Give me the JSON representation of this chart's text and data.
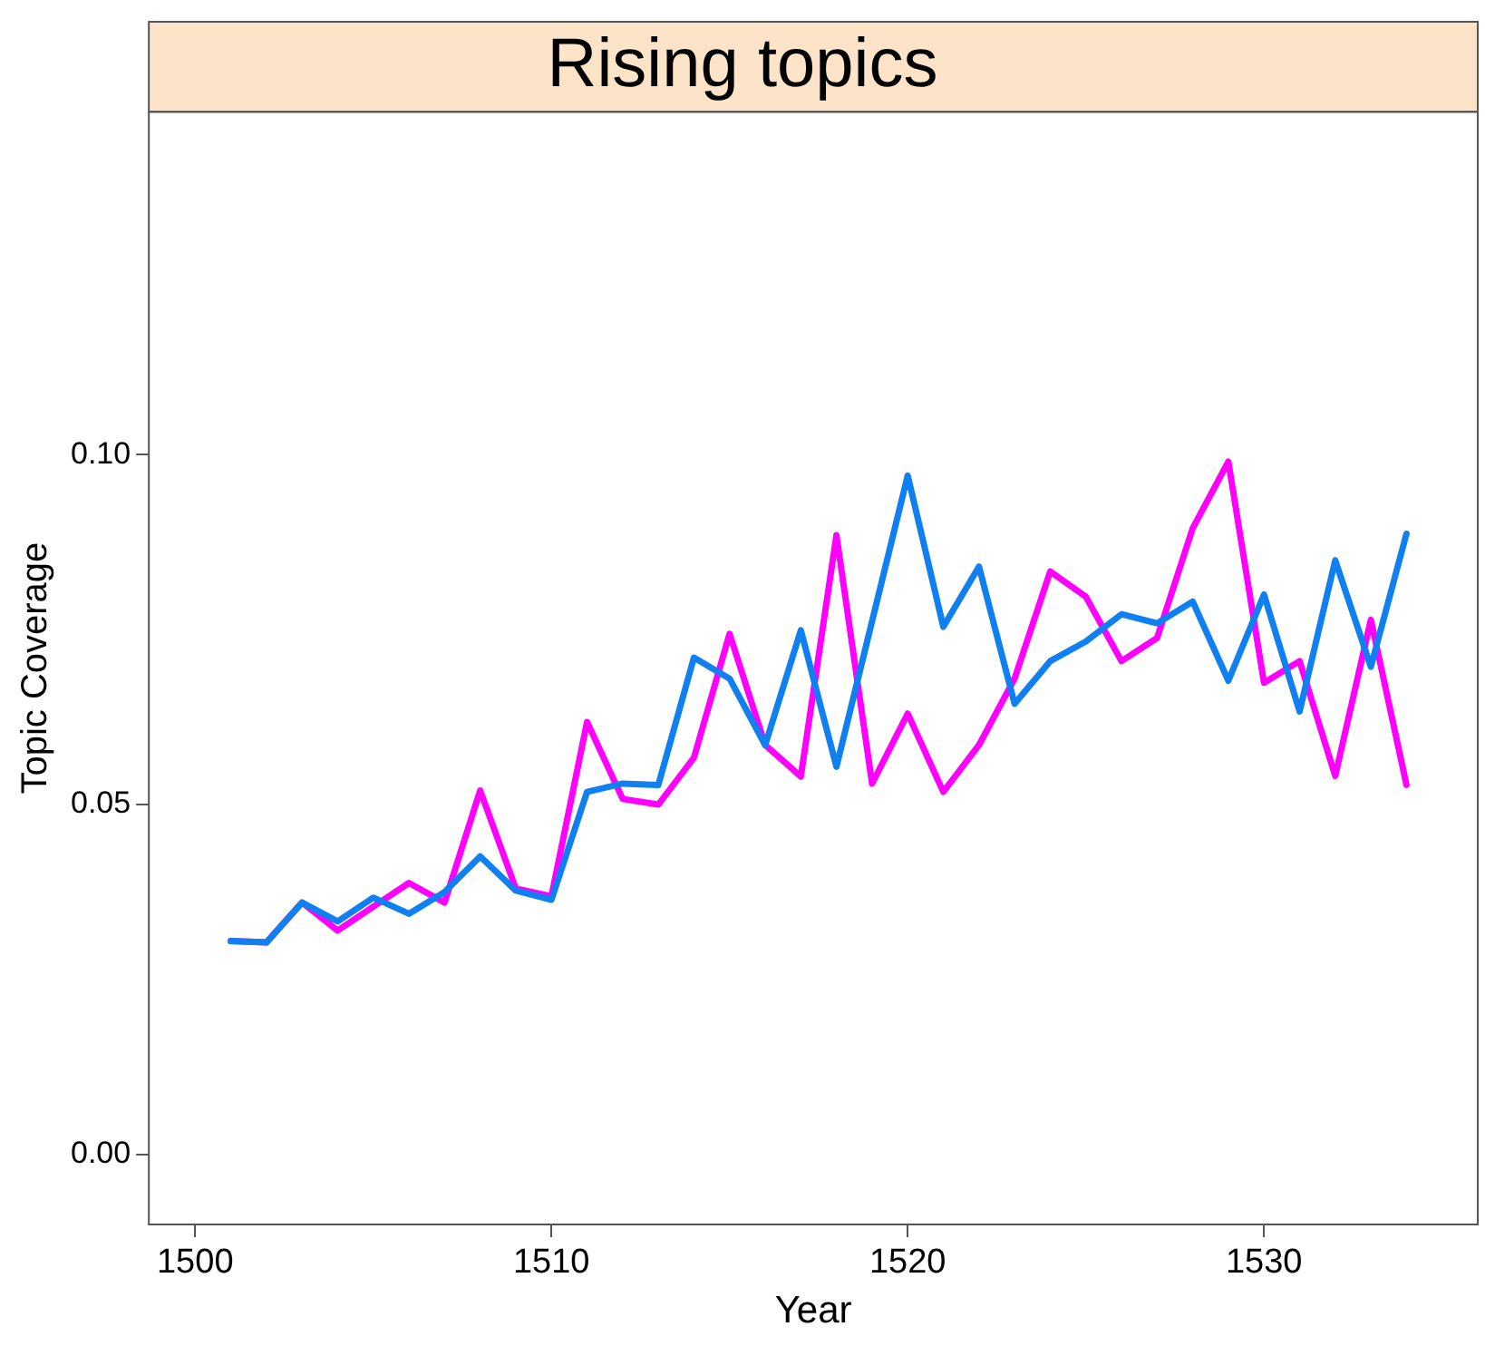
{
  "chart_data": {
    "type": "line",
    "title": "Rising topics",
    "xlabel": "Year",
    "ylabel": "Topic Coverage",
    "x": [
      1501,
      1502,
      1503,
      1504,
      1505,
      1506,
      1507,
      1508,
      1509,
      1510,
      1511,
      1512,
      1513,
      1514,
      1515,
      1516,
      1517,
      1518,
      1519,
      1520,
      1521,
      1522,
      1523,
      1524,
      1525,
      1526,
      1527,
      1528,
      1529,
      1530,
      1531,
      1532,
      1533,
      1534
    ],
    "series": [
      {
        "color": "#1080f0",
        "values": [
          0.0305,
          0.0303,
          0.036,
          0.0333,
          0.0367,
          0.0344,
          0.0375,
          0.0426,
          0.0377,
          0.0364,
          0.0518,
          0.053,
          0.0528,
          0.071,
          0.068,
          0.0585,
          0.0749,
          0.0554,
          0.0762,
          0.097,
          0.0754,
          0.084,
          0.0644,
          0.0705,
          0.0733,
          0.0772,
          0.0759,
          0.079,
          0.0677,
          0.08,
          0.0633,
          0.0849,
          0.0697,
          0.0887
        ]
      },
      {
        "color": "#ff00ff",
        "values": [
          0.0305,
          0.0303,
          0.036,
          0.032,
          0.0354,
          0.0388,
          0.036,
          0.052,
          0.038,
          0.0369,
          0.0618,
          0.0508,
          0.05,
          0.0567,
          0.0744,
          0.0585,
          0.054,
          0.0885,
          0.053,
          0.063,
          0.0518,
          0.0585,
          0.068,
          0.0833,
          0.0797,
          0.0705,
          0.0738,
          0.0895,
          0.099,
          0.0674,
          0.0705,
          0.0541,
          0.0764,
          0.0528
        ]
      }
    ],
    "xlim": [
      1498.7,
      1536
    ],
    "xticks": [
      1500,
      1510,
      1520,
      1530
    ],
    "ylim": [
      -0.01,
      0.149
    ],
    "yticks": [
      {
        "value": 0,
        "label": "0.00"
      },
      {
        "value": 0.05,
        "label": "0.05"
      },
      {
        "value": 0.1,
        "label": "0.10"
      }
    ],
    "grid": false,
    "legend": false,
    "marker": "none",
    "line_style": "solid"
  }
}
